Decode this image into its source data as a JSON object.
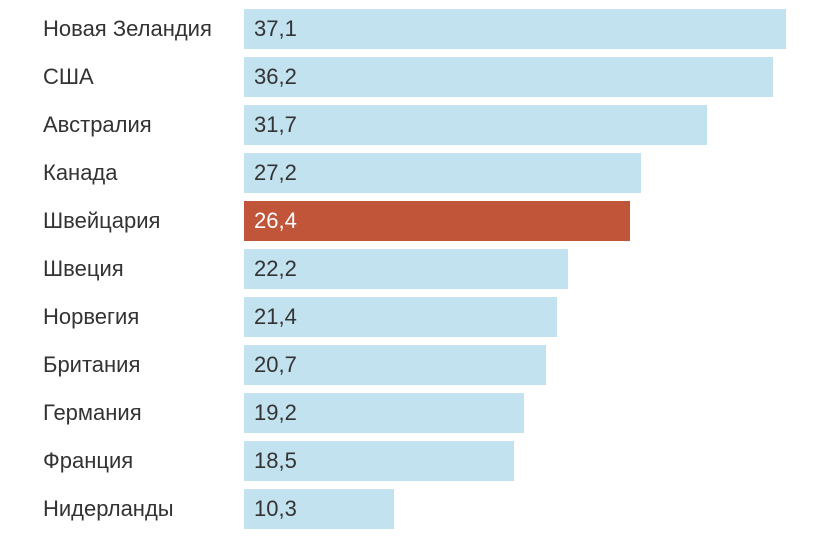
{
  "chart_data": {
    "type": "bar",
    "orientation": "horizontal",
    "title": "",
    "xlabel": "",
    "ylabel": "",
    "categories": [
      "Новая Зеландия",
      "США",
      "Австралия",
      "Канада",
      "Швейцария",
      "Швеция",
      "Норвегия",
      "Британия",
      "Германия",
      "Франция",
      "Нидерланды"
    ],
    "values": [
      37.1,
      36.2,
      31.7,
      27.2,
      26.4,
      22.2,
      21.4,
      20.7,
      19.2,
      18.5,
      10.3
    ],
    "value_labels": [
      "37,1",
      "36,2",
      "31,7",
      "27,2",
      "26,4",
      "22,2",
      "21,4",
      "20,7",
      "19,2",
      "18,5",
      "10,3"
    ],
    "highlight": "Швейцария",
    "xlim": [
      0,
      37.1
    ],
    "grid": false,
    "colors": {
      "default": "#c2e2ef",
      "highlight": "#c0553a"
    }
  }
}
